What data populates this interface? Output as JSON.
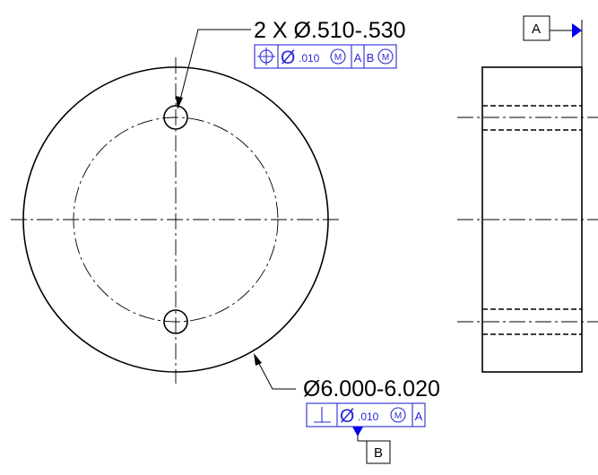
{
  "colors": {
    "gdt_blue": "#2a2ad8",
    "datum_blue": "#0000ee",
    "line": "#000000"
  },
  "hole_callout": {
    "dimension": "2 X Ø.510-.530",
    "fcf": {
      "symbol": "position-icon",
      "diameter": "Ø",
      "tolerance": ".010",
      "modifier": "M",
      "datum_1": "A",
      "datum_2": "B",
      "datum_2_modifier": "M"
    }
  },
  "outer_callout": {
    "dimension": "Ø6.000-6.020",
    "fcf": {
      "symbol": "perpendicularity-icon",
      "diameter": "Ø",
      "tolerance": ".010",
      "modifier": "M",
      "datum_1": "A"
    }
  },
  "datums": {
    "a": "A",
    "b": "B"
  }
}
